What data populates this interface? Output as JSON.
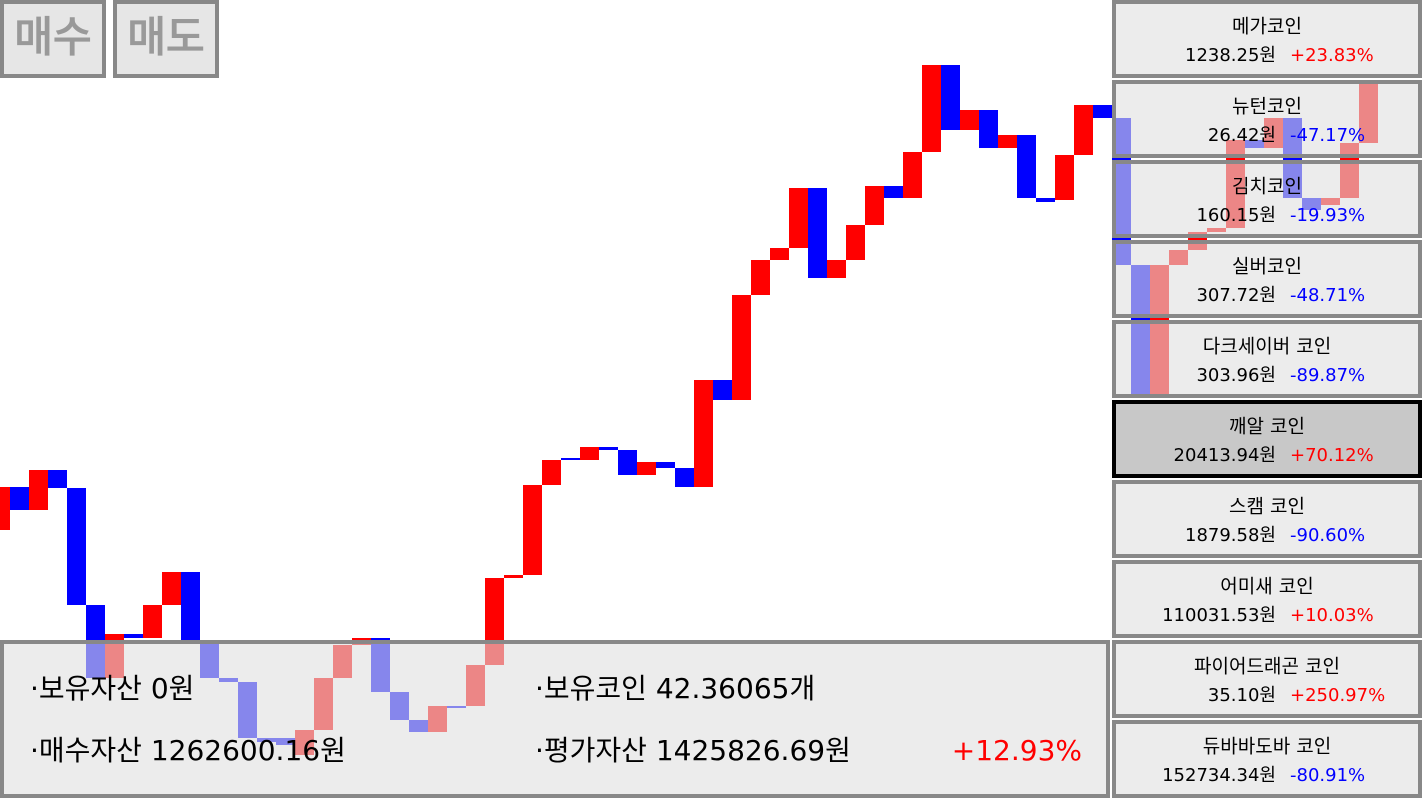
{
  "buttons": [
    "매수",
    "매도"
  ],
  "coins": [
    {
      "name": "메가코인",
      "price": "1238.25원",
      "change": "+23.83%"
    },
    {
      "name": "뉴턴코인",
      "price": "26.42원",
      "change": "-47.17%"
    },
    {
      "name": "김치코인",
      "price": "160.15원",
      "change": "-19.93%"
    },
    {
      "name": "실버코인",
      "price": "307.72원",
      "change": "-48.71%"
    },
    {
      "name": "다크세이버 코인",
      "price": "303.96원",
      "change": "-89.87%"
    },
    {
      "name": "깨알 코인",
      "price": "20413.94원",
      "change": "+70.12%"
    },
    {
      "name": "스캠 코인",
      "price": "1879.58원",
      "change": "-90.60%"
    },
    {
      "name": "어미새 코인",
      "price": "110031.53원",
      "change": "+10.03%"
    },
    {
      "name": "파이어드래곤 코인",
      "price": "35.10원",
      "change": "+250.97%"
    },
    {
      "name": "듀바바도바 코인",
      "price": "152734.34원",
      "change": "-80.91%"
    }
  ],
  "summary": {
    "held_cash": "·보유자산 0원",
    "held_coins": "·보유코인 42.36065개",
    "bought": "·매수자산 1262600.16원",
    "valuation": "·평가자산 1425826.69원",
    "profit": "+12.93%"
  },
  "chart": {
    "up_color": "#ff0000",
    "down_color": "#0000ff",
    "candles": [
      {
        "open": 270,
        "close": 313
      },
      {
        "open": 313,
        "close": 290
      },
      {
        "open": 290,
        "close": 330
      },
      {
        "open": 330,
        "close": 312
      },
      {
        "open": 312,
        "close": 195
      },
      {
        "open": 195,
        "close": 122
      },
      {
        "open": 122,
        "close": 166
      },
      {
        "open": 166,
        "close": 162
      },
      {
        "open": 162,
        "close": 195
      },
      {
        "open": 195,
        "close": 228
      },
      {
        "open": 228,
        "close": 160
      },
      {
        "open": 160,
        "close": 122
      },
      {
        "open": 122,
        "close": 118
      },
      {
        "open": 118,
        "close": 62
      },
      {
        "open": 62,
        "close": 58
      },
      {
        "open": 62,
        "close": 55
      },
      {
        "open": 45,
        "close": 70
      },
      {
        "open": 70,
        "close": 122
      },
      {
        "open": 122,
        "close": 155
      },
      {
        "open": 155,
        "close": 162
      },
      {
        "open": 162,
        "close": 108
      },
      {
        "open": 108,
        "close": 80
      },
      {
        "open": 80,
        "close": 68
      },
      {
        "open": 68,
        "close": 94
      },
      {
        "open": 94,
        "close": 92
      },
      {
        "open": 94,
        "close": 135
      },
      {
        "open": 135,
        "close": 222
      },
      {
        "open": 222,
        "close": 225
      },
      {
        "open": 225,
        "close": 315
      },
      {
        "open": 315,
        "close": 340
      },
      {
        "open": 342,
        "close": 340
      },
      {
        "open": 340,
        "close": 353
      },
      {
        "open": 353,
        "close": 350
      },
      {
        "open": 350,
        "close": 325
      },
      {
        "open": 325,
        "close": 338
      },
      {
        "open": 338,
        "close": 332
      },
      {
        "open": 332,
        "close": 313
      },
      {
        "open": 313,
        "close": 420
      },
      {
        "open": 420,
        "close": 400
      },
      {
        "open": 400,
        "close": 505
      },
      {
        "open": 505,
        "close": 540
      },
      {
        "open": 540,
        "close": 552
      },
      {
        "open": 552,
        "close": 612
      },
      {
        "open": 612,
        "close": 522
      },
      {
        "open": 522,
        "close": 540
      },
      {
        "open": 540,
        "close": 575
      },
      {
        "open": 575,
        "close": 614
      },
      {
        "open": 614,
        "close": 602
      },
      {
        "open": 602,
        "close": 648
      },
      {
        "open": 648,
        "close": 735
      },
      {
        "open": 735,
        "close": 670
      },
      {
        "open": 670,
        "close": 690
      },
      {
        "open": 690,
        "close": 652
      },
      {
        "open": 652,
        "close": 665
      },
      {
        "open": 665,
        "close": 602
      },
      {
        "open": 602,
        "close": 598
      },
      {
        "open": 600,
        "close": 645
      },
      {
        "open": 645,
        "close": 695
      },
      {
        "open": 695,
        "close": 682
      },
      {
        "open": 682,
        "close": 535
      },
      {
        "open": 535,
        "close": 402
      },
      {
        "open": 402,
        "close": 535
      },
      {
        "open": 535,
        "close": 550
      },
      {
        "open": 550,
        "close": 568
      },
      {
        "open": 568,
        "close": 572
      },
      {
        "open": 572,
        "close": 660
      },
      {
        "open": 660,
        "close": 652
      },
      {
        "open": 652,
        "close": 682
      },
      {
        "open": 682,
        "close": 602
      },
      {
        "open": 602,
        "close": 590
      },
      {
        "open": 595,
        "close": 602
      },
      {
        "open": 602,
        "close": 657
      },
      {
        "open": 657,
        "close": 720
      }
    ]
  }
}
